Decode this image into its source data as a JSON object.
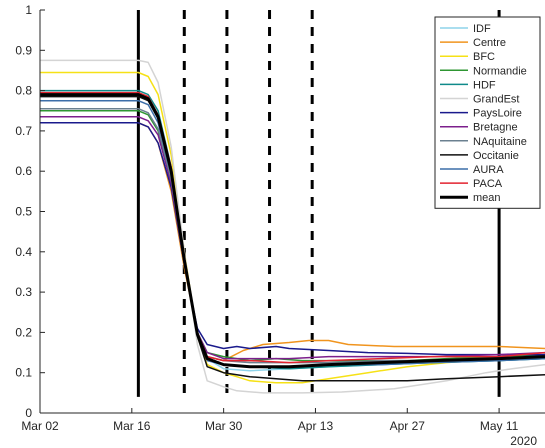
{
  "chart_data": {
    "type": "line",
    "title": "",
    "xlabel": "",
    "ylabel": "",
    "x_unit": "day",
    "x_start": "Mar 02",
    "x_range": [
      0,
      77
    ],
    "ylim": [
      0,
      1
    ],
    "x_ticks": [
      {
        "x": 0,
        "label": "Mar 02"
      },
      {
        "x": 14,
        "label": "Mar 16"
      },
      {
        "x": 28,
        "label": "Mar 30"
      },
      {
        "x": 42,
        "label": "Apr 13"
      },
      {
        "x": 56,
        "label": "Apr 27"
      },
      {
        "x": 70,
        "label": "May 11"
      }
    ],
    "x_secondary_label": "2020",
    "y_ticks": [
      0,
      0.1,
      0.2,
      0.3,
      0.4,
      0.5,
      0.6,
      0.7,
      0.8,
      0.9,
      1
    ],
    "grid": false,
    "legend_position": "top-right",
    "vlines": [
      {
        "x": 15,
        "style": "solid"
      },
      {
        "x": 22,
        "style": "dashed"
      },
      {
        "x": 28.5,
        "style": "dashed"
      },
      {
        "x": 35,
        "style": "dashed"
      },
      {
        "x": 41.5,
        "style": "dashed"
      },
      {
        "x": 70,
        "style": "solid"
      }
    ],
    "series": [
      {
        "name": "IDF",
        "color": "#8ed3ea",
        "points": [
          [
            0,
            0.79
          ],
          [
            15,
            0.79
          ],
          [
            16.5,
            0.78
          ],
          [
            18,
            0.74
          ],
          [
            20,
            0.6
          ],
          [
            22,
            0.38
          ],
          [
            24,
            0.2
          ],
          [
            25.5,
            0.135
          ],
          [
            28,
            0.11
          ],
          [
            32,
            0.105
          ],
          [
            38,
            0.11
          ],
          [
            44,
            0.115
          ],
          [
            52,
            0.12
          ],
          [
            60,
            0.125
          ],
          [
            70,
            0.13
          ],
          [
            77,
            0.135
          ]
        ]
      },
      {
        "name": "Centre",
        "color": "#f0941e",
        "points": [
          [
            0,
            0.72
          ],
          [
            15,
            0.72
          ],
          [
            16.5,
            0.71
          ],
          [
            18,
            0.67
          ],
          [
            20,
            0.55
          ],
          [
            22,
            0.36
          ],
          [
            24,
            0.2
          ],
          [
            25.5,
            0.14
          ],
          [
            28,
            0.13
          ],
          [
            31,
            0.155
          ],
          [
            34,
            0.17
          ],
          [
            38,
            0.175
          ],
          [
            41,
            0.18
          ],
          [
            44,
            0.18
          ],
          [
            47,
            0.17
          ],
          [
            54,
            0.165
          ],
          [
            62,
            0.165
          ],
          [
            70,
            0.165
          ],
          [
            77,
            0.16
          ]
        ]
      },
      {
        "name": "BFC",
        "color": "#f6e116",
        "points": [
          [
            0,
            0.845
          ],
          [
            15,
            0.845
          ],
          [
            16.5,
            0.835
          ],
          [
            18,
            0.79
          ],
          [
            20,
            0.64
          ],
          [
            22,
            0.4
          ],
          [
            24,
            0.19
          ],
          [
            25.5,
            0.12
          ],
          [
            28,
            0.1
          ],
          [
            30,
            0.09
          ],
          [
            32,
            0.08
          ],
          [
            36,
            0.075
          ],
          [
            40,
            0.075
          ],
          [
            44,
            0.085
          ],
          [
            50,
            0.1
          ],
          [
            56,
            0.115
          ],
          [
            62,
            0.125
          ],
          [
            70,
            0.135
          ],
          [
            77,
            0.145
          ]
        ]
      },
      {
        "name": "Normandie",
        "color": "#2e9632",
        "points": [
          [
            0,
            0.75
          ],
          [
            15,
            0.75
          ],
          [
            16.5,
            0.74
          ],
          [
            18,
            0.7
          ],
          [
            20,
            0.57
          ],
          [
            22,
            0.37
          ],
          [
            24,
            0.2
          ],
          [
            25.5,
            0.15
          ],
          [
            28,
            0.14
          ],
          [
            32,
            0.13
          ],
          [
            36,
            0.135
          ],
          [
            40,
            0.13
          ],
          [
            44,
            0.13
          ],
          [
            50,
            0.13
          ],
          [
            56,
            0.13
          ],
          [
            62,
            0.135
          ],
          [
            70,
            0.14
          ],
          [
            77,
            0.145
          ]
        ]
      },
      {
        "name": "HDF",
        "color": "#0f8a8a",
        "points": [
          [
            0,
            0.8
          ],
          [
            15,
            0.8
          ],
          [
            16.5,
            0.79
          ],
          [
            18,
            0.75
          ],
          [
            20,
            0.61
          ],
          [
            22,
            0.38
          ],
          [
            24,
            0.2
          ],
          [
            25.5,
            0.135
          ],
          [
            28,
            0.12
          ],
          [
            32,
            0.115
          ],
          [
            38,
            0.11
          ],
          [
            44,
            0.115
          ],
          [
            52,
            0.12
          ],
          [
            60,
            0.125
          ],
          [
            70,
            0.13
          ],
          [
            77,
            0.135
          ]
        ]
      },
      {
        "name": "GrandEst",
        "color": "#d4d4d4",
        "points": [
          [
            0,
            0.875
          ],
          [
            15,
            0.875
          ],
          [
            16.5,
            0.87
          ],
          [
            18,
            0.82
          ],
          [
            20,
            0.66
          ],
          [
            22,
            0.4
          ],
          [
            24,
            0.17
          ],
          [
            25.5,
            0.08
          ],
          [
            28,
            0.065
          ],
          [
            30,
            0.055
          ],
          [
            34,
            0.05
          ],
          [
            40,
            0.05
          ],
          [
            46,
            0.052
          ],
          [
            54,
            0.06
          ],
          [
            62,
            0.08
          ],
          [
            68,
            0.1
          ],
          [
            72,
            0.11
          ],
          [
            77,
            0.12
          ]
        ]
      },
      {
        "name": "PaysLoire",
        "color": "#1a1a8c",
        "points": [
          [
            0,
            0.72
          ],
          [
            15,
            0.72
          ],
          [
            16.5,
            0.71
          ],
          [
            18,
            0.67
          ],
          [
            20,
            0.56
          ],
          [
            22,
            0.37
          ],
          [
            24,
            0.21
          ],
          [
            25.5,
            0.17
          ],
          [
            28,
            0.16
          ],
          [
            30,
            0.165
          ],
          [
            32,
            0.16
          ],
          [
            36,
            0.165
          ],
          [
            38,
            0.16
          ],
          [
            44,
            0.155
          ],
          [
            50,
            0.15
          ],
          [
            56,
            0.148
          ],
          [
            62,
            0.145
          ],
          [
            70,
            0.145
          ],
          [
            77,
            0.145
          ]
        ]
      },
      {
        "name": "Bretagne",
        "color": "#7c1f8c",
        "points": [
          [
            0,
            0.735
          ],
          [
            15,
            0.735
          ],
          [
            16.5,
            0.725
          ],
          [
            18,
            0.69
          ],
          [
            20,
            0.57
          ],
          [
            22,
            0.37
          ],
          [
            24,
            0.2
          ],
          [
            25.5,
            0.15
          ],
          [
            28,
            0.135
          ],
          [
            32,
            0.135
          ],
          [
            38,
            0.135
          ],
          [
            44,
            0.14
          ],
          [
            52,
            0.14
          ],
          [
            60,
            0.14
          ],
          [
            70,
            0.145
          ],
          [
            77,
            0.15
          ]
        ]
      },
      {
        "name": "NAquitaine",
        "color": "#6b8090",
        "points": [
          [
            0,
            0.755
          ],
          [
            15,
            0.755
          ],
          [
            16.5,
            0.745
          ],
          [
            18,
            0.705
          ],
          [
            20,
            0.58
          ],
          [
            22,
            0.375
          ],
          [
            24,
            0.2
          ],
          [
            25.5,
            0.14
          ],
          [
            28,
            0.13
          ],
          [
            32,
            0.125
          ],
          [
            38,
            0.125
          ],
          [
            44,
            0.125
          ],
          [
            52,
            0.13
          ],
          [
            60,
            0.13
          ],
          [
            70,
            0.135
          ],
          [
            77,
            0.14
          ]
        ]
      },
      {
        "name": "Occitanie",
        "color": "#111111",
        "points": [
          [
            0,
            0.785
          ],
          [
            15,
            0.785
          ],
          [
            16.5,
            0.775
          ],
          [
            18,
            0.73
          ],
          [
            20,
            0.6
          ],
          [
            22,
            0.38
          ],
          [
            24,
            0.19
          ],
          [
            25.5,
            0.115
          ],
          [
            28,
            0.1
          ],
          [
            32,
            0.09
          ],
          [
            36,
            0.085
          ],
          [
            40,
            0.08
          ],
          [
            44,
            0.08
          ],
          [
            50,
            0.08
          ],
          [
            56,
            0.08
          ],
          [
            62,
            0.085
          ],
          [
            70,
            0.09
          ],
          [
            77,
            0.095
          ]
        ]
      },
      {
        "name": "AURA",
        "color": "#3c6ea8",
        "points": [
          [
            0,
            0.775
          ],
          [
            15,
            0.775
          ],
          [
            16.5,
            0.765
          ],
          [
            18,
            0.72
          ],
          [
            20,
            0.59
          ],
          [
            22,
            0.375
          ],
          [
            24,
            0.2
          ],
          [
            25.5,
            0.13
          ],
          [
            28,
            0.12
          ],
          [
            32,
            0.115
          ],
          [
            38,
            0.115
          ],
          [
            44,
            0.12
          ],
          [
            52,
            0.12
          ],
          [
            60,
            0.125
          ],
          [
            70,
            0.13
          ],
          [
            77,
            0.135
          ]
        ]
      },
      {
        "name": "PACA",
        "color": "#e2232f",
        "points": [
          [
            0,
            0.795
          ],
          [
            15,
            0.795
          ],
          [
            16.5,
            0.785
          ],
          [
            18,
            0.74
          ],
          [
            20,
            0.61
          ],
          [
            22,
            0.385
          ],
          [
            24,
            0.2
          ],
          [
            25.5,
            0.14
          ],
          [
            28,
            0.13
          ],
          [
            32,
            0.13
          ],
          [
            38,
            0.125
          ],
          [
            44,
            0.13
          ],
          [
            52,
            0.135
          ],
          [
            60,
            0.14
          ],
          [
            70,
            0.14
          ],
          [
            77,
            0.15
          ]
        ]
      },
      {
        "name": "mean",
        "color": "#000000",
        "width": 3,
        "points": [
          [
            0,
            0.79
          ],
          [
            15,
            0.79
          ],
          [
            16.5,
            0.78
          ],
          [
            18,
            0.735
          ],
          [
            20,
            0.6
          ],
          [
            22,
            0.38
          ],
          [
            24,
            0.195
          ],
          [
            25.5,
            0.135
          ],
          [
            28,
            0.12
          ],
          [
            32,
            0.115
          ],
          [
            38,
            0.115
          ],
          [
            44,
            0.12
          ],
          [
            52,
            0.125
          ],
          [
            60,
            0.13
          ],
          [
            70,
            0.135
          ],
          [
            77,
            0.14
          ]
        ]
      }
    ]
  }
}
